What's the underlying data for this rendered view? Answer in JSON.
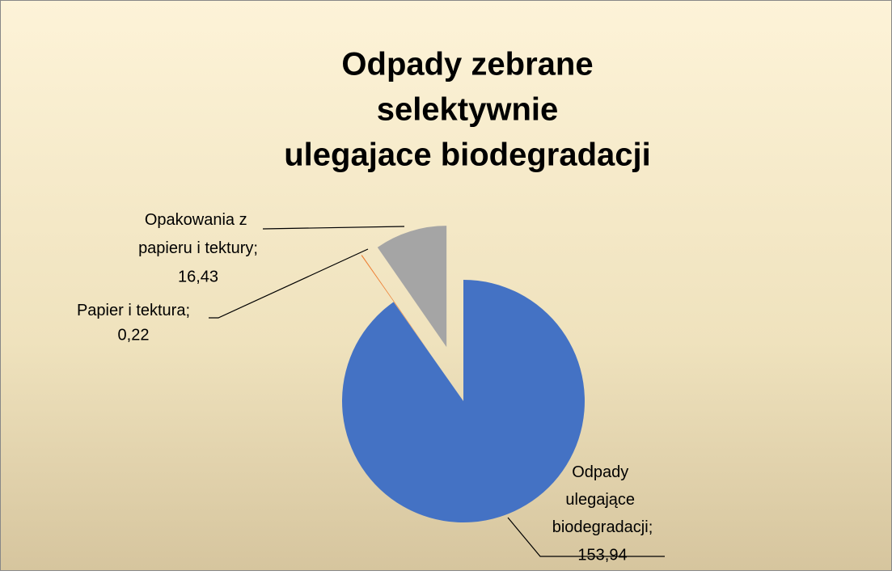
{
  "chart_data": {
    "type": "pie",
    "title_lines": [
      "Odpady zebrane",
      "selektywnie",
      "ulegajace biodegradacji"
    ],
    "categories": [
      "Odpady ulegające biodegradacji",
      "Papier i tektura",
      "Opakowania z papieru i tektury"
    ],
    "separator": ";",
    "values": [
      153.94,
      0.22,
      16.43
    ],
    "value_labels": [
      "153,94",
      "0,22",
      "16,43"
    ],
    "colors": [
      "#4472c4",
      "#ed7d31",
      "#a5a5a5"
    ],
    "explode": [
      false,
      true,
      true
    ]
  }
}
